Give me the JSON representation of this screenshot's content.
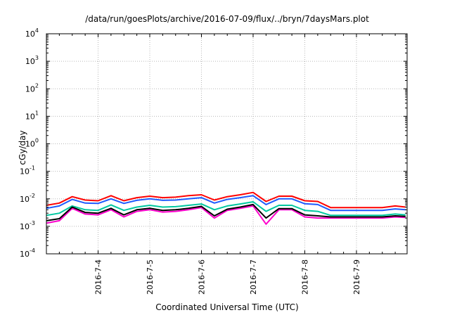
{
  "chart_data": {
    "type": "line",
    "title": "/data/run/goesPlots/archive/2016-07-09/flux/../bryn/7daysMars.plot",
    "xlabel": "Coordinated Universal Time (UTC)",
    "ylabel": "cGy/day",
    "yscale": "log",
    "ylim": [
      0.0001,
      10000
    ],
    "xlim": [
      2016.0703,
      2016.071
    ],
    "ytick_labels": [
      {
        "base": "10",
        "exp": "-4",
        "value": 0.0001
      },
      {
        "base": "10",
        "exp": "-3",
        "value": 0.001
      },
      {
        "base": "10",
        "exp": "-2",
        "value": 0.01
      },
      {
        "base": "10",
        "exp": "-1",
        "value": 0.1
      },
      {
        "base": "10",
        "exp": "0",
        "value": 1
      },
      {
        "base": "10",
        "exp": "1",
        "value": 10
      },
      {
        "base": "10",
        "exp": "2",
        "value": 100
      },
      {
        "base": "10",
        "exp": "3",
        "value": 1000
      },
      {
        "base": "10",
        "exp": "4",
        "value": 10000
      }
    ],
    "xtick_labels": [
      "2016-7-4",
      "2016-7-5",
      "2016-7-6",
      "2016-7-7",
      "2016-7-8",
      "2016-7-9"
    ],
    "xtick_days": [
      1,
      2,
      3,
      4,
      5,
      6
    ],
    "grid": true,
    "x_days": [
      0.0,
      0.25,
      0.5,
      0.75,
      1.0,
      1.25,
      1.5,
      1.75,
      2.0,
      2.25,
      2.5,
      2.75,
      3.0,
      3.25,
      3.5,
      3.75,
      4.0,
      4.25,
      4.5,
      4.75,
      5.0,
      5.25,
      5.5,
      5.75,
      6.0,
      6.25,
      6.5,
      6.75,
      6.95
    ],
    "series": [
      {
        "color": "#ff0000",
        "values": [
          0.0058,
          0.007,
          0.012,
          0.009,
          0.0085,
          0.013,
          0.0085,
          0.011,
          0.0125,
          0.011,
          0.0115,
          0.013,
          0.014,
          0.009,
          0.012,
          0.014,
          0.017,
          0.008,
          0.0125,
          0.0125,
          0.0085,
          0.008,
          0.0048,
          0.0048,
          0.0048,
          0.0048,
          0.0048,
          0.0055,
          0.005
        ]
      },
      {
        "color": "#1e5aff",
        "values": [
          0.0045,
          0.0055,
          0.0095,
          0.007,
          0.0068,
          0.01,
          0.0068,
          0.0088,
          0.01,
          0.0088,
          0.009,
          0.01,
          0.011,
          0.007,
          0.0095,
          0.011,
          0.013,
          0.0062,
          0.01,
          0.01,
          0.0066,
          0.0062,
          0.0038,
          0.0038,
          0.0038,
          0.0038,
          0.0038,
          0.0043,
          0.004
        ]
      },
      {
        "color": "#00c8a0",
        "values": [
          0.0025,
          0.003,
          0.0055,
          0.004,
          0.0038,
          0.006,
          0.0038,
          0.005,
          0.0058,
          0.005,
          0.0052,
          0.0058,
          0.0065,
          0.004,
          0.0055,
          0.0065,
          0.0078,
          0.0035,
          0.0058,
          0.0058,
          0.0038,
          0.0035,
          0.0025,
          0.0025,
          0.0025,
          0.0025,
          0.0025,
          0.0028,
          0.0026
        ]
      },
      {
        "color": "#ff00cc",
        "values": [
          0.0013,
          0.0016,
          0.0045,
          0.0028,
          0.0026,
          0.004,
          0.0022,
          0.0035,
          0.004,
          0.0033,
          0.0035,
          0.004,
          0.0048,
          0.002,
          0.0038,
          0.0045,
          0.0055,
          0.0012,
          0.004,
          0.004,
          0.0022,
          0.002,
          0.002,
          0.002,
          0.002,
          0.002,
          0.002,
          0.0022,
          0.0021
        ]
      },
      {
        "color": "#000000",
        "values": [
          0.0016,
          0.0019,
          0.005,
          0.0032,
          0.003,
          0.0045,
          0.0026,
          0.004,
          0.0045,
          0.0038,
          0.004,
          0.0045,
          0.0053,
          0.0024,
          0.0042,
          0.005,
          0.0062,
          0.002,
          0.0044,
          0.0044,
          0.0026,
          0.0024,
          0.0022,
          0.0022,
          0.0022,
          0.0022,
          0.0022,
          0.0024,
          0.0023
        ]
      }
    ]
  }
}
